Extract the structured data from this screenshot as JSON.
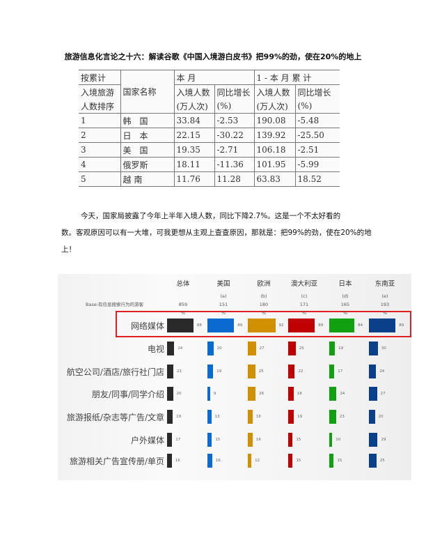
{
  "title": "旅游信息化言论之十六：解读谷歌《中国入境游白皮书》把99%的劲，使在20%的地上",
  "table": {
    "header": {
      "rank": [
        "按累计",
        "入境旅游",
        "人数排序"
      ],
      "country": "国家名称",
      "month": "本 月",
      "cumulative": "1 - 本 月 累 计",
      "arrivals": "入境人数",
      "arrivals_unit": "(万人次)",
      "growth": "同比增长",
      "growth_unit": "(%)"
    },
    "rows": [
      {
        "rank": "1",
        "country": "韩　国",
        "m_arr": "33.84",
        "m_g": "-2.53",
        "c_arr": "190.08",
        "c_g": "-5.48"
      },
      {
        "rank": "2",
        "country": "日　本",
        "m_arr": "22.15",
        "m_g": "-30.22",
        "c_arr": "139.92",
        "c_g": "-25.50"
      },
      {
        "rank": "3",
        "country": "美　国",
        "m_arr": "19.35",
        "m_g": "-2.71",
        "c_arr": "106.18",
        "c_g": "-2.51"
      },
      {
        "rank": "4",
        "country": "俄罗斯",
        "m_arr": "18.11",
        "m_g": "-11.36",
        "c_arr": "101.95",
        "c_g": "-5.99"
      },
      {
        "rank": "5",
        "country": "越 南",
        "m_arr": "11.76",
        "m_g": "11.28",
        "c_arr": "63.83",
        "c_g": "18.52"
      }
    ]
  },
  "paragraph": [
    "今天，国家局披露了今年上半年入境人数，同比下降2.7%。这是一个不太好看的",
    "数。客观原因可以有一大堆，可我更想从主观上查查原因，那就是：把99%的劲，使在20%的地",
    "上！"
  ],
  "chart_data": {
    "type": "bar",
    "base_label": "Base:有信息搜索行为的游客",
    "unit": "%",
    "columns": [
      {
        "name": "总体",
        "code": "",
        "base": "859",
        "color": "#2a2a2a"
      },
      {
        "name": "美国",
        "code": "(a)",
        "base": "151",
        "color": "#0a6ad0"
      },
      {
        "name": "欧洲",
        "code": "(b)",
        "base": "180",
        "color": "#d09000"
      },
      {
        "name": "澳大利亚",
        "code": "(c)",
        "base": "171",
        "color": "#c00000"
      },
      {
        "name": "日本",
        "code": "(d)",
        "base": "165",
        "color": "#10a010"
      },
      {
        "name": "东南亚",
        "code": "(e)",
        "base": "193",
        "color": "#0a3f8a"
      }
    ],
    "categories": [
      "网络媒体",
      "电视",
      "航空公司/酒店/旅行社门店",
      "朋友/同事/同学介绍",
      "旅游报纸/杂志等广告/文章",
      "户外媒体",
      "旅游相关广告宣传册/单页"
    ],
    "values": [
      [
        88,
        89,
        92,
        89,
        84,
        89
      ],
      [
        24,
        20,
        27,
        25,
        19,
        30
      ],
      [
        21,
        19,
        25,
        22,
        17,
        24
      ],
      [
        20,
        9,
        26,
        18,
        24,
        27
      ],
      [
        19,
        13,
        16,
        19,
        23,
        20
      ],
      [
        17,
        15,
        16,
        15,
        10,
        29
      ],
      [
        16,
        16,
        12,
        15,
        15,
        25
      ]
    ],
    "highlight": "网络媒体"
  }
}
